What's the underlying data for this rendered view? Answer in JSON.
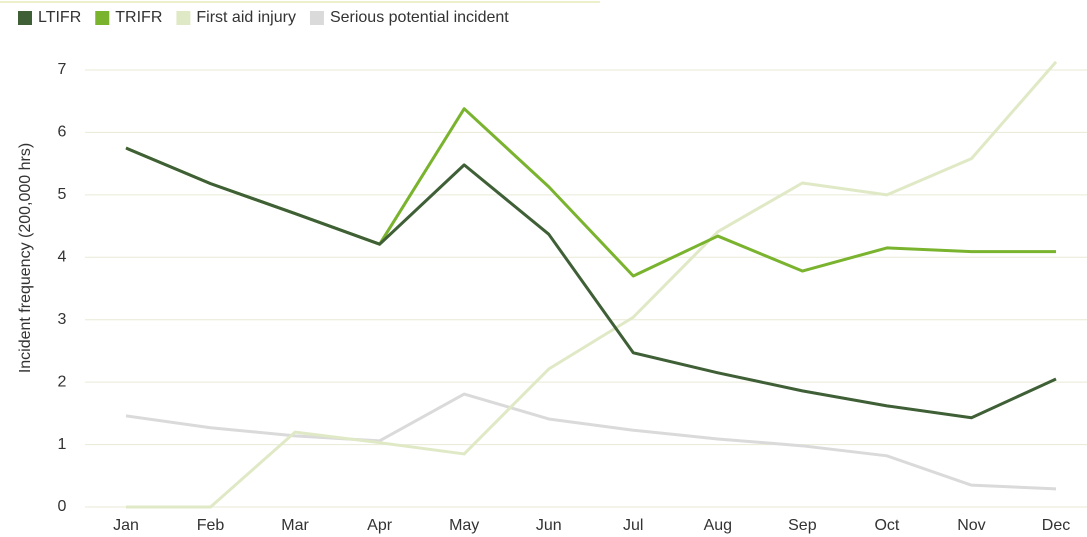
{
  "chart_data": {
    "type": "line",
    "y_label": "Incident frequency (200,000 hrs)",
    "categories": [
      "Jan",
      "Feb",
      "Mar",
      "Apr",
      "May",
      "Jun",
      "Jul",
      "Aug",
      "Sep",
      "Oct",
      "Nov",
      "Dec"
    ],
    "series": [
      {
        "name": "LTIFR",
        "color": "#3f5f36",
        "values": [
          5.75,
          5.18,
          4.7,
          4.21,
          5.48,
          4.37,
          2.47,
          2.15,
          1.86,
          1.62,
          1.43,
          2.05
        ]
      },
      {
        "name": "TRIFR",
        "color": "#7ab32e",
        "values": [
          5.75,
          5.18,
          4.7,
          4.21,
          6.38,
          5.13,
          3.7,
          4.34,
          3.78,
          4.15,
          4.09,
          4.09
        ]
      },
      {
        "name": "First aid injury",
        "color": "#e0e9c6",
        "values": [
          0,
          0,
          1.2,
          1.03,
          0.85,
          2.21,
          3.04,
          4.41,
          5.19,
          5.0,
          5.58,
          7.13
        ]
      },
      {
        "name": "Serious potential incident",
        "color": "#dadada",
        "values": [
          1.46,
          1.27,
          1.14,
          1.06,
          1.81,
          1.41,
          1.23,
          1.09,
          0.98,
          0.82,
          0.35,
          0.29
        ]
      }
    ],
    "ylim": [
      0,
      7
    ],
    "yticks": [
      0,
      1,
      2,
      3,
      4,
      5,
      6,
      7
    ],
    "grid": true,
    "legend": "top-left"
  }
}
